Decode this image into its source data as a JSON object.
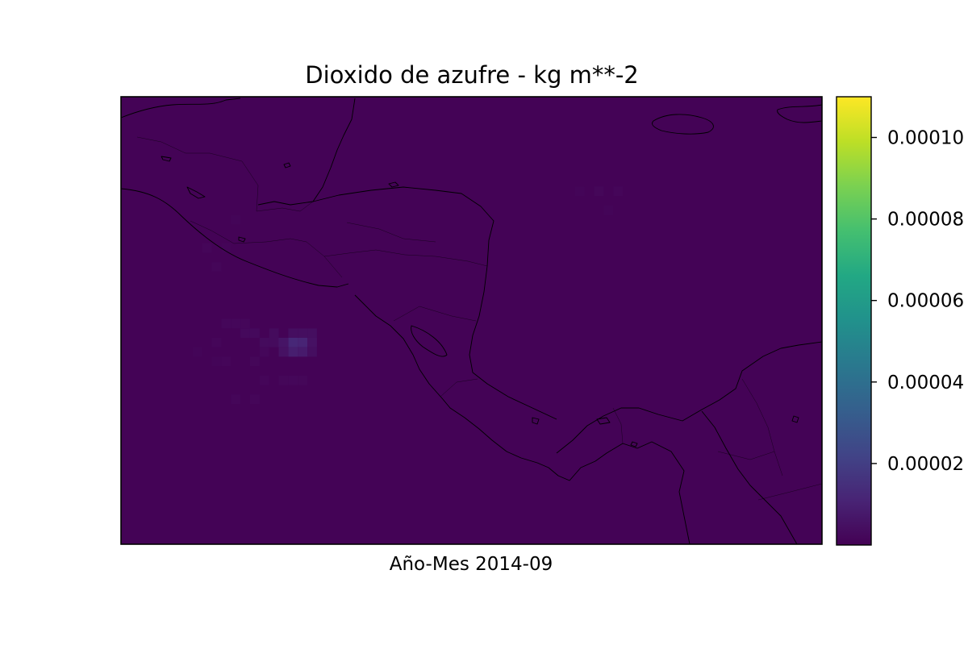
{
  "chart_data": {
    "type": "heatmap",
    "title": "Dioxido de azufre - kg m**-2",
    "xlabel": "Año-Mes 2014-09",
    "colormap": "viridis",
    "colorbar": {
      "range": [
        0,
        0.00011
      ],
      "ticks": [
        {
          "value": 2e-05,
          "label": "0.00002"
        },
        {
          "value": 4e-05,
          "label": "0.00004"
        },
        {
          "value": 6e-05,
          "label": "0.00006"
        },
        {
          "value": 8e-05,
          "label": "0.00008"
        },
        {
          "value": 0.0001,
          "label": "0.00010"
        }
      ],
      "placement": "right"
    },
    "background_value": 5e-07,
    "cells": [
      {
        "lon": -87.1,
        "lat": 13.2,
        "value": 1.2e-05
      },
      {
        "lon": -86.8,
        "lat": 13.2,
        "value": 1.1e-05
      },
      {
        "lon": -87.1,
        "lat": 12.9,
        "value": 9e-06
      },
      {
        "lon": -86.8,
        "lat": 12.9,
        "value": 8e-06
      },
      {
        "lon": -87.4,
        "lat": 13.2,
        "value": 6e-06
      },
      {
        "lon": -86.5,
        "lat": 13.2,
        "value": 5e-06
      },
      {
        "lon": -87.4,
        "lat": 12.9,
        "value": 5e-06
      },
      {
        "lon": -86.5,
        "lat": 12.9,
        "value": 4e-06
      },
      {
        "lon": -86.8,
        "lat": 13.5,
        "value": 4e-06
      },
      {
        "lon": -86.5,
        "lat": 13.5,
        "value": 4e-06
      },
      {
        "lon": -87.1,
        "lat": 13.5,
        "value": 4e-06
      },
      {
        "lon": -87.7,
        "lat": 13.2,
        "value": 3e-06
      },
      {
        "lon": -87.7,
        "lat": 13.5,
        "value": 3e-06
      },
      {
        "lon": -88.0,
        "lat": 13.2,
        "value": 3e-06
      },
      {
        "lon": -88.3,
        "lat": 13.5,
        "value": 2.5e-06
      },
      {
        "lon": -88.6,
        "lat": 13.5,
        "value": 2.5e-06
      },
      {
        "lon": -88.9,
        "lat": 13.8,
        "value": 2e-06
      },
      {
        "lon": -88.6,
        "lat": 13.8,
        "value": 2e-06
      },
      {
        "lon": -89.2,
        "lat": 13.8,
        "value": 2e-06
      },
      {
        "lon": -88.0,
        "lat": 12.9,
        "value": 2e-06
      },
      {
        "lon": -88.3,
        "lat": 12.6,
        "value": 1.8e-06
      },
      {
        "lon": -87.1,
        "lat": 12.0,
        "value": 2e-06
      },
      {
        "lon": -87.4,
        "lat": 12.0,
        "value": 1.8e-06
      },
      {
        "lon": -86.8,
        "lat": 12.0,
        "value": 1.8e-06
      },
      {
        "lon": -88.0,
        "lat": 12.0,
        "value": 1.5e-06
      },
      {
        "lon": -88.9,
        "lat": 11.4,
        "value": 1.5e-06
      },
      {
        "lon": -88.3,
        "lat": 11.4,
        "value": 1.5e-06
      },
      {
        "lon": -89.2,
        "lat": 12.6,
        "value": 1.5e-06
      },
      {
        "lon": -89.5,
        "lat": 13.2,
        "value": 1.5e-06
      },
      {
        "lon": -89.5,
        "lat": 12.6,
        "value": 1.3e-06
      },
      {
        "lon": -90.1,
        "lat": 12.9,
        "value": 1.2e-06
      },
      {
        "lon": -89.5,
        "lat": 15.6,
        "value": 1.5e-06
      },
      {
        "lon": -89.8,
        "lat": 16.2,
        "value": 1.5e-06
      },
      {
        "lon": -89.2,
        "lat": 16.2,
        "value": 1.3e-06
      },
      {
        "lon": -88.9,
        "lat": 17.1,
        "value": 1.3e-06
      },
      {
        "lon": -77.5,
        "lat": 18.0,
        "value": 1.8e-06
      },
      {
        "lon": -76.9,
        "lat": 18.0,
        "value": 1.5e-06
      },
      {
        "lon": -78.1,
        "lat": 18.0,
        "value": 1.3e-06
      },
      {
        "lon": -77.2,
        "lat": 17.4,
        "value": 1.2e-06
      }
    ]
  }
}
